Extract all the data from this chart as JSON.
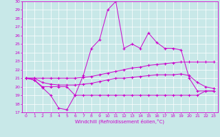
{
  "xlabel": "Windchill (Refroidissement éolien,°C)",
  "xlim": [
    -0.5,
    23.5
  ],
  "ylim": [
    17,
    30
  ],
  "yticks": [
    17,
    18,
    19,
    20,
    21,
    22,
    23,
    24,
    25,
    26,
    27,
    28,
    29,
    30
  ],
  "xticks": [
    0,
    1,
    2,
    3,
    4,
    5,
    6,
    7,
    8,
    9,
    10,
    11,
    12,
    13,
    14,
    15,
    16,
    17,
    18,
    19,
    20,
    21,
    22,
    23
  ],
  "background_color": "#c8e8e8",
  "line_color": "#cc00cc",
  "grid_color": "#ffffff",
  "series": [
    {
      "x": [
        0,
        1,
        2,
        3,
        4,
        5,
        6,
        7,
        8,
        9,
        10,
        11,
        12,
        13,
        14,
        15,
        16,
        17,
        18,
        19,
        20,
        21,
        22,
        23
      ],
      "y": [
        21.0,
        20.8,
        19.9,
        19.0,
        17.5,
        17.3,
        19.0,
        21.3,
        24.5,
        25.5,
        29.0,
        30.0,
        24.5,
        25.0,
        24.5,
        26.3,
        25.2,
        24.5,
        24.5,
        24.3,
        21.0,
        19.5,
        19.5,
        19.5
      ]
    },
    {
      "x": [
        0,
        1,
        2,
        3,
        4,
        5,
        6,
        7,
        8,
        9,
        10,
        11,
        12,
        13,
        14,
        15,
        16,
        17,
        18,
        19,
        20,
        21,
        22,
        23
      ],
      "y": [
        21.0,
        21.0,
        21.0,
        21.0,
        21.0,
        21.0,
        21.0,
        21.1,
        21.2,
        21.4,
        21.6,
        21.8,
        22.0,
        22.2,
        22.3,
        22.5,
        22.6,
        22.7,
        22.8,
        22.9,
        22.9,
        22.9,
        22.9,
        22.9
      ]
    },
    {
      "x": [
        0,
        1,
        2,
        3,
        4,
        5,
        6,
        7,
        8,
        9,
        10,
        11,
        12,
        13,
        14,
        15,
        16,
        17,
        18,
        19,
        20,
        21,
        22,
        23
      ],
      "y": [
        21.0,
        21.0,
        20.5,
        20.3,
        20.2,
        20.2,
        20.2,
        20.3,
        20.4,
        20.6,
        20.8,
        21.0,
        21.0,
        21.1,
        21.2,
        21.3,
        21.4,
        21.4,
        21.4,
        21.5,
        21.3,
        20.5,
        20.0,
        19.8
      ]
    },
    {
      "x": [
        0,
        1,
        2,
        3,
        4,
        5,
        6,
        7,
        8,
        9,
        10,
        11,
        12,
        13,
        14,
        15,
        16,
        17,
        18,
        19,
        20,
        21,
        22,
        23
      ],
      "y": [
        21.0,
        20.8,
        20.0,
        20.0,
        20.0,
        20.0,
        19.0,
        19.0,
        19.0,
        19.0,
        19.0,
        19.0,
        19.0,
        19.0,
        19.0,
        19.0,
        19.0,
        19.0,
        19.0,
        19.0,
        19.0,
        19.0,
        19.5,
        19.5
      ]
    }
  ]
}
